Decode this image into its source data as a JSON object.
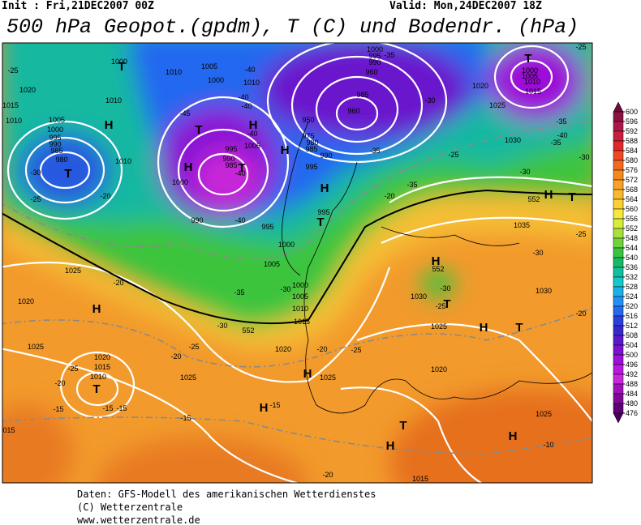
{
  "header": {
    "init": "Init : Fri,21DEC2007 00Z",
    "valid": "Valid: Mon,24DEC2007 18Z",
    "title": "500 hPa Geopot.(gpdm), T (C) und Bodendr. (hPa)"
  },
  "colorbar": {
    "ticks": [
      600,
      596,
      592,
      588,
      584,
      580,
      576,
      572,
      568,
      564,
      560,
      556,
      552,
      548,
      544,
      540,
      536,
      532,
      528,
      524,
      520,
      516,
      512,
      508,
      504,
      500,
      496,
      492,
      488,
      484,
      480,
      476
    ],
    "colors": [
      "#6e0a3c",
      "#8c1040",
      "#aa1848",
      "#c81e3a",
      "#e0282a",
      "#f04820",
      "#f46a1c",
      "#f68820",
      "#f8a028",
      "#fab830",
      "#fcd034",
      "#f6e83c",
      "#d8ec3c",
      "#a8e03c",
      "#70d23c",
      "#38c43c",
      "#18b864",
      "#10c09c",
      "#14c8c8",
      "#1cb0e8",
      "#2090f4",
      "#2468f0",
      "#2840dc",
      "#3828cc",
      "#5a18cc",
      "#7c10d0",
      "#9c10d8",
      "#b818e0",
      "#c828d8",
      "#a010b8",
      "#800898",
      "#600078",
      "#44005c"
    ]
  },
  "map_labels": [
    "1000",
    "T",
    "1010",
    "1005",
    "1000",
    "-40",
    "1010",
    "-40",
    "-40",
    "-25",
    "1020",
    "1015",
    "1010",
    "1010",
    "1005",
    "1000",
    "H",
    "995",
    "990",
    "985",
    "980",
    "T",
    "-30",
    "-25",
    "-20",
    "1010",
    "-45",
    "T",
    "H",
    "H",
    "1000",
    "995",
    "990",
    "985",
    "T",
    "-40",
    "1005",
    "-40",
    "H",
    "990",
    "-40",
    "995",
    "H",
    "T",
    "995",
    "1000",
    "1005",
    "1000",
    "1005",
    "1010",
    "1015",
    "-35",
    "-30",
    "1000",
    "995",
    "990",
    "960",
    "-35",
    "985",
    "960",
    "950",
    "975",
    "980",
    "985",
    "990",
    "995",
    "-35",
    "-30",
    "-25",
    "1020",
    "1025",
    "-35",
    "-20",
    "T",
    "-25",
    "1005",
    "1000",
    "1010",
    "1015",
    "-35",
    "-40",
    "-35",
    "1030",
    "-30",
    "-30",
    "552",
    "H",
    "T",
    "1035",
    "-25",
    "-30",
    "1030",
    "-20",
    "H",
    "552",
    "-30",
    "1030",
    "-25",
    "T",
    "1025",
    "H",
    "T",
    "H",
    "1025",
    "-20",
    "1020",
    "1025",
    "-30",
    "552",
    "-25",
    "-20",
    "1020",
    "-20",
    "-25",
    "1020",
    "1015",
    "1010",
    "-25",
    "-20",
    "T",
    "-15",
    "-15",
    "-15",
    "1025",
    "H",
    "1025",
    "-15",
    "H",
    "-15",
    "1020",
    "1025",
    "H",
    "-10",
    "T",
    "H",
    "015",
    "-20",
    "1015"
  ],
  "footer": [
    "Daten: GFS-Modell des amerikanischen Wetterdienstes",
    "(C) Wetterzentrale",
    "www.wetterzentrale.de"
  ]
}
